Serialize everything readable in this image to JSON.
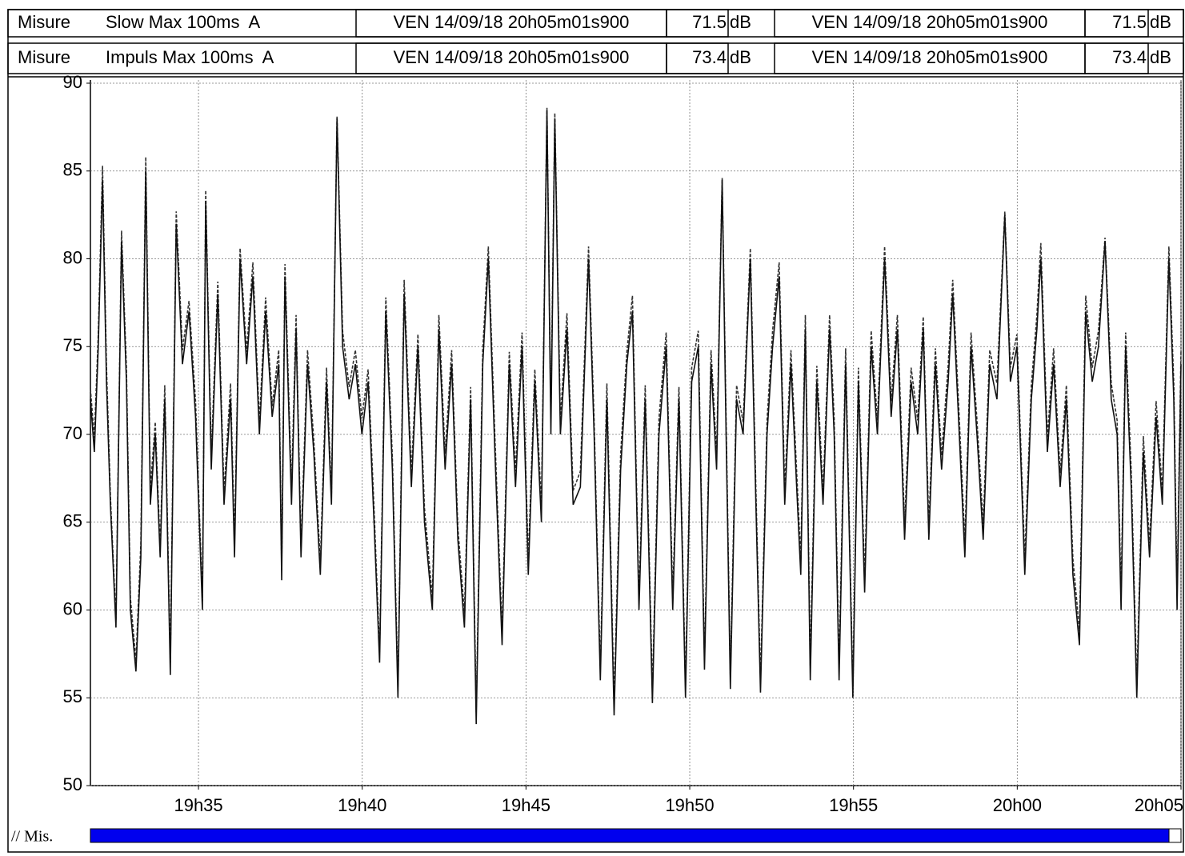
{
  "header_rows": [
    {
      "label": "Misure",
      "cursor_left": {
        "date": "VEN 14/09/18 20h05m01s900",
        "value": 71.5,
        "unit": "dB"
      },
      "cursor_right": {
        "date": "VEN 14/09/18 20h05m01s900",
        "value": 71.5,
        "unit": "dB"
      }
    },
    {
      "label": "Misure",
      "cursor_left": {
        "date": "VEN 14/09/18 20h05m01s900",
        "value": 73.4,
        "unit": "dB"
      },
      "cursor_right": {
        "date": "VEN 14/09/18 20h05m01s900",
        "value": 73.4,
        "unit": "dB"
      }
    }
  ],
  "footer_label": "// Mis.",
  "chart_data": {
    "type": "line",
    "grid": true,
    "xlim": [
      1171.7,
      1205.0
    ],
    "ylim": [
      50,
      90
    ],
    "xticks": [
      {
        "value": 1175,
        "label": "19h35"
      },
      {
        "value": 1180,
        "label": "19h40"
      },
      {
        "value": 1185,
        "label": "19h45"
      },
      {
        "value": 1190,
        "label": "19h50"
      },
      {
        "value": 1195,
        "label": "19h55"
      },
      {
        "value": 1200,
        "label": "20h00"
      },
      {
        "value": 1205,
        "label": "20h05"
      }
    ],
    "yticks": [
      50,
      55,
      60,
      65,
      70,
      75,
      80,
      85,
      90
    ],
    "x": [
      1171.7,
      1171.82,
      1171.94,
      1172.07,
      1172.19,
      1172.31,
      1172.48,
      1172.65,
      1172.8,
      1172.92,
      1173.09,
      1173.24,
      1173.39,
      1173.53,
      1173.68,
      1173.83,
      1173.97,
      1174.14,
      1174.32,
      1174.51,
      1174.71,
      1174.91,
      1175.12,
      1175.22,
      1175.39,
      1175.59,
      1175.78,
      1175.98,
      1176.1,
      1176.27,
      1176.47,
      1176.66,
      1176.86,
      1177.05,
      1177.25,
      1177.45,
      1177.54,
      1177.64,
      1177.84,
      1177.98,
      1178.13,
      1178.33,
      1178.52,
      1178.72,
      1178.91,
      1179.06,
      1179.23,
      1179.4,
      1179.6,
      1179.79,
      1179.99,
      1180.18,
      1180.36,
      1180.53,
      1180.72,
      1180.92,
      1181.09,
      1181.28,
      1181.5,
      1181.7,
      1181.9,
      1182.14,
      1182.34,
      1182.53,
      1182.73,
      1182.92,
      1183.12,
      1183.31,
      1183.48,
      1183.68,
      1183.85,
      1184.05,
      1184.27,
      1184.49,
      1184.68,
      1184.88,
      1185.07,
      1185.27,
      1185.47,
      1185.64,
      1185.76,
      1185.88,
      1186.05,
      1186.25,
      1186.44,
      1186.66,
      1186.91,
      1187.08,
      1187.27,
      1187.47,
      1187.69,
      1187.89,
      1188.08,
      1188.25,
      1188.45,
      1188.64,
      1188.86,
      1189.06,
      1189.28,
      1189.48,
      1189.67,
      1189.87,
      1190.06,
      1190.26,
      1190.45,
      1190.65,
      1190.82,
      1190.99,
      1191.11,
      1191.24,
      1191.43,
      1191.63,
      1191.85,
      1192.02,
      1192.16,
      1192.36,
      1192.53,
      1192.73,
      1192.9,
      1193.09,
      1193.39,
      1193.53,
      1193.68,
      1193.88,
      1194.07,
      1194.27,
      1194.41,
      1194.56,
      1194.76,
      1194.98,
      1195.15,
      1195.34,
      1195.54,
      1195.73,
      1195.95,
      1196.15,
      1196.34,
      1196.56,
      1196.76,
      1196.96,
      1197.13,
      1197.3,
      1197.5,
      1197.69,
      1197.89,
      1198.03,
      1198.23,
      1198.4,
      1198.59,
      1198.77,
      1198.96,
      1199.16,
      1199.38,
      1199.62,
      1199.79,
      1199.99,
      1200.23,
      1200.43,
      1200.6,
      1200.72,
      1200.92,
      1201.11,
      1201.31,
      1201.5,
      1201.7,
      1201.9,
      1202.09,
      1202.29,
      1202.48,
      1202.68,
      1202.87,
      1203.05,
      1203.17,
      1203.31,
      1203.48,
      1203.65,
      1203.85,
      1204.04,
      1204.24,
      1204.43,
      1204.63,
      1204.78,
      1204.88,
      1205.0
    ],
    "series": [
      {
        "name": "Slow Max 100ms  A",
        "color": "#111111",
        "line_style": "solid",
        "values": [
          72,
          69,
          75,
          84.5,
          73,
          66,
          59,
          81,
          73,
          60,
          56.5,
          63,
          85,
          66,
          70,
          63,
          72,
          56.3,
          82,
          74,
          77,
          71,
          60,
          83.3,
          68,
          78,
          66,
          72,
          63,
          80,
          74,
          79,
          70,
          77,
          71,
          74,
          61.7,
          79,
          66,
          76,
          63,
          74,
          69,
          62,
          73,
          66,
          88,
          75,
          72,
          74,
          70,
          73,
          65,
          57,
          77,
          68,
          55,
          78,
          67,
          75,
          65,
          60,
          76,
          68,
          74,
          64,
          59,
          72,
          53.5,
          74,
          80,
          69,
          58,
          74,
          67,
          75,
          62,
          73,
          65,
          88.5,
          70,
          88,
          70,
          76,
          66,
          67,
          80,
          70,
          56,
          72,
          54,
          68,
          74,
          77,
          60,
          72,
          54.7,
          70,
          75,
          60,
          72,
          55,
          73,
          75,
          56.6,
          74,
          68,
          84.5,
          70,
          55.5,
          72,
          70,
          80,
          66,
          55.3,
          70,
          75,
          79,
          66,
          74,
          62,
          76,
          56,
          73,
          66,
          76,
          70,
          56,
          74,
          55,
          73,
          61,
          75,
          70,
          80,
          71,
          76,
          64,
          73,
          70,
          76,
          64,
          74,
          68,
          73,
          78,
          70,
          63,
          75,
          70,
          64,
          74,
          72,
          82.5,
          73,
          75,
          62,
          72,
          76,
          80,
          69,
          74,
          67,
          72,
          62,
          58,
          77,
          73,
          75,
          81,
          72,
          70,
          60,
          75,
          67,
          55,
          69,
          63,
          71,
          66,
          80,
          72,
          60,
          74
        ]
      },
      {
        "name": "Impuls Max 100ms  A",
        "color": "#333333",
        "line_style": "dashed",
        "values": [
          72.6,
          69.8,
          75.7,
          85.3,
          73.9,
          66.5,
          59.4,
          81.6,
          73.8,
          60.7,
          57.1,
          63.8,
          85.8,
          66.9,
          70.7,
          63.6,
          72.8,
          57.0,
          82.7,
          74.8,
          77.6,
          71.9,
          60.5,
          83.9,
          68.8,
          78.7,
          66.7,
          72.9,
          63.8,
          80.6,
          74.7,
          79.8,
          70.7,
          77.8,
          71.6,
          74.8,
          62.3,
          79.7,
          66.9,
          76.8,
          63.6,
          74.8,
          69.7,
          62.7,
          73.8,
          66.6,
          88.1,
          75.9,
          72.7,
          74.8,
          70.9,
          73.7,
          65.8,
          57.6,
          77.8,
          68.7,
          55.6,
          78.8,
          67.8,
          75.7,
          65.8,
          60.7,
          76.8,
          68.9,
          74.8,
          64.7,
          59.8,
          72.7,
          54.2,
          74.8,
          80.7,
          69.9,
          58.8,
          74.7,
          67.9,
          75.8,
          62.8,
          73.7,
          65.9,
          88.6,
          70.9,
          88.3,
          70.8,
          76.9,
          66.8,
          67.9,
          80.7,
          70.8,
          56.6,
          72.9,
          54.8,
          68.9,
          74.7,
          77.9,
          60.7,
          72.8,
          55.4,
          70.9,
          75.8,
          60.8,
          72.7,
          55.7,
          73.8,
          75.9,
          57.2,
          74.8,
          68.9,
          84.6,
          70.9,
          56.2,
          72.8,
          70.7,
          80.6,
          66.9,
          56.0,
          70.8,
          75.9,
          79.8,
          66.9,
          74.8,
          62.9,
          76.8,
          56.8,
          73.9,
          66.7,
          76.8,
          70.9,
          56.8,
          74.9,
          55.6,
          73.8,
          61.8,
          75.9,
          70.8,
          80.7,
          71.9,
          76.8,
          64.9,
          73.8,
          70.8,
          76.7,
          64.8,
          74.9,
          68.8,
          73.9,
          78.8,
          70.9,
          63.9,
          75.8,
          70.8,
          64.9,
          74.8,
          72.9,
          82.7,
          73.8,
          75.7,
          62.9,
          72.8,
          76.8,
          80.9,
          69.8,
          74.9,
          67.8,
          72.8,
          62.9,
          58.8,
          77.9,
          73.8,
          75.9,
          81.2,
          72.9,
          70.8,
          60.9,
          75.8,
          67.9,
          55.8,
          69.9,
          63.8,
          71.9,
          66.8,
          80.7,
          72.9,
          60.9,
          74.8
        ]
      }
    ]
  }
}
